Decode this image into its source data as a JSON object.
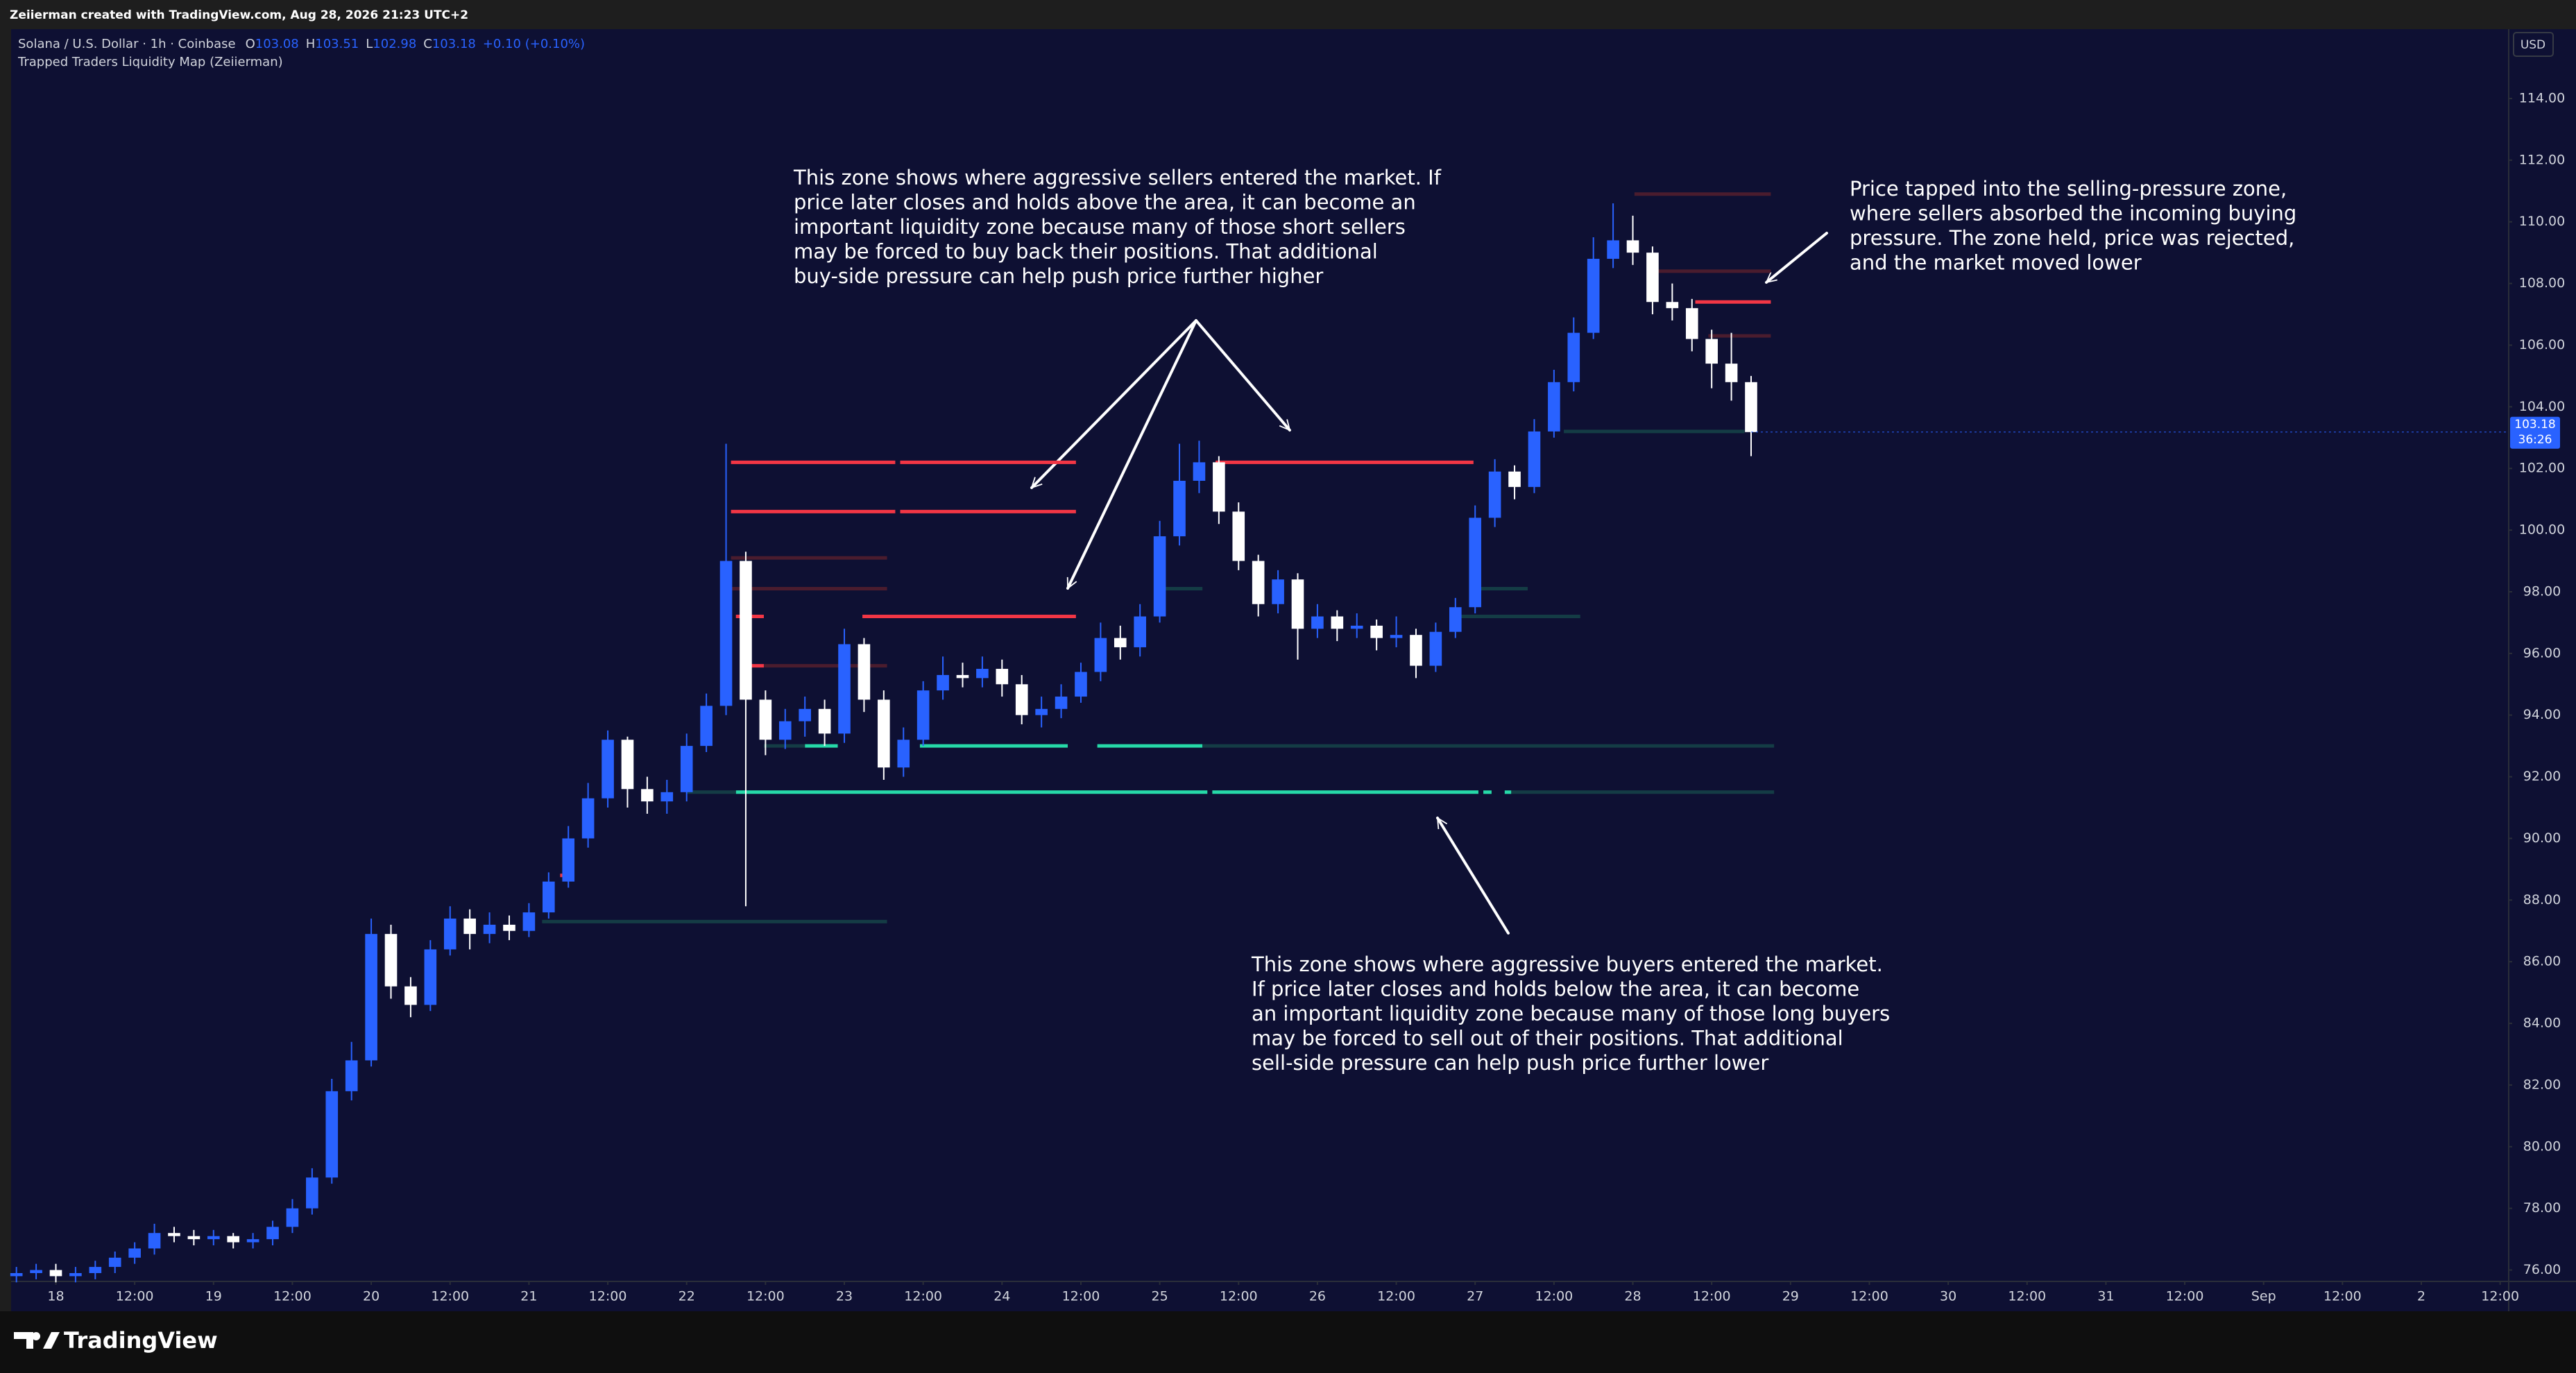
{
  "header": {
    "credit": "Zeiierman created with TradingView.com, Aug 28, 2026 21:23 UTC+2"
  },
  "chart_data": {
    "type": "candlestick",
    "symbol": "Solana / U.S. Dollar · 1h · Coinbase",
    "ohlc_legend": [
      {
        "label": "O",
        "value": 103.08
      },
      {
        "label": "H",
        "value": 103.51
      },
      {
        "label": "L",
        "value": 102.98
      },
      {
        "label": "C",
        "value": 103.18
      }
    ],
    "change": "+0.10 (+0.10%)",
    "indicator": "Trapped Traders Liquidity Map (Zeiierman)",
    "currency": "USD",
    "countdown": "36:26",
    "x": [
      -6,
      -3,
      0,
      3,
      6,
      9,
      12,
      15,
      18,
      21,
      24,
      27,
      30,
      33,
      36,
      39,
      42,
      45,
      48,
      51,
      54,
      57,
      60,
      63,
      66,
      69,
      72,
      75,
      78,
      81,
      84,
      87,
      90,
      93,
      96,
      99,
      102,
      105,
      108,
      111,
      114,
      117,
      120,
      123,
      126,
      129,
      132,
      135,
      138,
      141,
      144,
      147,
      150,
      153,
      156,
      159,
      162,
      165,
      168,
      171,
      174,
      177,
      180,
      183,
      186,
      189,
      192,
      195,
      198,
      201,
      204,
      207,
      210,
      213,
      216,
      219,
      222,
      225,
      228,
      231,
      234,
      237,
      240,
      243,
      246,
      249,
      252,
      255,
      258
    ],
    "open": [
      75.8,
      75.9,
      76.0,
      75.8,
      75.9,
      76.1,
      76.4,
      76.7,
      77.2,
      77.1,
      77.0,
      77.1,
      76.9,
      77.0,
      77.4,
      78.0,
      79.0,
      81.8,
      82.8,
      86.9,
      85.2,
      84.6,
      86.4,
      87.4,
      86.9,
      87.2,
      87.0,
      87.6,
      88.6,
      90.0,
      91.3,
      93.2,
      91.6,
      91.2,
      91.5,
      93.0,
      94.3,
      99.0,
      94.5,
      93.2,
      93.8,
      94.2,
      93.4,
      96.3,
      94.5,
      92.3,
      93.2,
      94.8,
      95.3,
      95.2,
      95.5,
      95.0,
      94.0,
      94.2,
      94.6,
      95.4,
      96.5,
      96.2,
      97.2,
      99.8,
      101.6,
      102.2,
      100.6,
      99.0,
      97.6,
      98.4,
      96.8,
      97.2,
      96.8,
      96.9,
      96.5,
      96.6,
      95.6,
      96.7,
      97.5,
      100.4,
      101.9,
      101.4,
      103.2,
      104.8,
      106.4,
      108.8,
      109.4,
      109.0,
      107.4,
      107.2,
      106.2,
      105.4,
      104.8
    ],
    "high": [
      76.1,
      76.2,
      76.2,
      76.1,
      76.3,
      76.6,
      76.9,
      77.5,
      77.4,
      77.3,
      77.3,
      77.2,
      77.2,
      77.6,
      78.3,
      79.3,
      82.2,
      83.4,
      87.4,
      87.2,
      85.5,
      86.7,
      87.8,
      87.7,
      87.6,
      87.5,
      87.9,
      88.9,
      90.4,
      91.8,
      93.5,
      93.3,
      92.0,
      91.9,
      93.4,
      94.7,
      102.8,
      99.3,
      94.8,
      94.2,
      94.6,
      94.5,
      96.8,
      96.5,
      94.8,
      93.6,
      95.1,
      95.9,
      95.7,
      95.9,
      95.8,
      95.3,
      94.6,
      95.0,
      95.7,
      97.0,
      96.9,
      97.6,
      100.3,
      102.8,
      102.9,
      102.4,
      100.9,
      99.2,
      98.7,
      98.6,
      97.6,
      97.4,
      97.3,
      97.1,
      97.2,
      96.8,
      97.0,
      97.8,
      100.8,
      102.3,
      102.1,
      103.6,
      105.2,
      106.9,
      109.5,
      110.6,
      110.2,
      109.2,
      108.0,
      107.5,
      106.5,
      106.4,
      105.0
    ],
    "low": [
      75.6,
      75.7,
      75.6,
      75.6,
      75.7,
      75.9,
      76.2,
      76.5,
      76.9,
      76.8,
      76.8,
      76.7,
      76.7,
      76.8,
      77.2,
      77.8,
      78.8,
      81.5,
      82.6,
      84.8,
      84.2,
      84.4,
      86.2,
      86.4,
      86.6,
      86.7,
      86.8,
      87.4,
      88.4,
      89.7,
      91.0,
      91.0,
      90.8,
      90.8,
      91.2,
      92.8,
      94.0,
      87.8,
      92.7,
      92.9,
      93.3,
      93.0,
      93.1,
      94.1,
      91.9,
      92.0,
      93.0,
      94.5,
      94.9,
      94.9,
      94.6,
      93.7,
      93.6,
      93.9,
      94.4,
      95.1,
      95.8,
      95.9,
      97.0,
      99.5,
      101.2,
      100.2,
      98.7,
      97.2,
      97.3,
      95.8,
      96.5,
      96.4,
      96.5,
      96.1,
      96.2,
      95.2,
      95.4,
      96.5,
      97.3,
      100.1,
      101.0,
      101.2,
      103.0,
      104.5,
      106.2,
      108.5,
      108.6,
      107.0,
      106.8,
      105.8,
      104.6,
      104.2,
      102.4
    ],
    "close": [
      75.9,
      76.0,
      75.8,
      75.9,
      76.1,
      76.4,
      76.7,
      77.2,
      77.1,
      77.0,
      77.1,
      76.9,
      77.0,
      77.4,
      78.0,
      79.0,
      81.8,
      82.8,
      86.9,
      85.2,
      84.6,
      86.4,
      87.4,
      86.9,
      87.2,
      87.0,
      87.6,
      88.6,
      90.0,
      91.3,
      93.2,
      91.6,
      91.2,
      91.5,
      93.0,
      94.3,
      99.0,
      94.5,
      93.2,
      93.8,
      94.2,
      93.4,
      96.3,
      94.5,
      92.3,
      93.2,
      94.8,
      95.3,
      95.2,
      95.5,
      95.0,
      94.0,
      94.2,
      94.6,
      95.4,
      96.5,
      96.2,
      97.2,
      99.8,
      101.6,
      102.2,
      100.6,
      99.0,
      97.6,
      98.4,
      96.8,
      97.2,
      96.8,
      96.9,
      96.5,
      96.6,
      95.6,
      96.7,
      97.5,
      100.4,
      101.9,
      101.4,
      103.2,
      104.8,
      106.4,
      108.8,
      109.4,
      109.0,
      107.4,
      107.2,
      106.2,
      105.4,
      104.8,
      103.18
    ],
    "up_color": "#2962ff",
    "down_color": "#ffffff",
    "zones": [
      {
        "price": 102.2,
        "from": 102.75,
        "to": 127.75,
        "color": "#f23645"
      },
      {
        "price": 102.2,
        "from": 128.5,
        "to": 155.25,
        "color": "#f23645"
      },
      {
        "price": 102.2,
        "from": 176.5,
        "to": 215.75,
        "color": "#f23645"
      },
      {
        "price": 100.6,
        "from": 102.75,
        "to": 127.75,
        "color": "#f23645"
      },
      {
        "price": 100.6,
        "from": 128.5,
        "to": 155.25,
        "color": "#f23645"
      },
      {
        "price": 97.2,
        "from": 103.5,
        "to": 107.75,
        "color": "#f23645"
      },
      {
        "price": 97.2,
        "from": 122.75,
        "to": 155.25,
        "color": "#f23645"
      },
      {
        "price": 95.6,
        "from": 105.75,
        "to": 107.75,
        "color": "#f23645"
      },
      {
        "price": 88.8,
        "from": 76.75,
        "to": 78.5,
        "color": "#f23645"
      },
      {
        "price": 107.4,
        "from": 249.5,
        "to": 261,
        "color": "#f23645"
      },
      {
        "price": 99.1,
        "from": 102.75,
        "to": 126.5,
        "color": "#4a1c2e"
      },
      {
        "price": 98.1,
        "from": 102.75,
        "to": 126.5,
        "color": "#4a1c2e"
      },
      {
        "price": 95.6,
        "from": 107.75,
        "to": 126.5,
        "color": "#4a1c2e"
      },
      {
        "price": 110.9,
        "from": 240.25,
        "to": 261,
        "color": "#4a1c2e"
      },
      {
        "price": 108.4,
        "from": 243.5,
        "to": 261,
        "color": "#4a1c2e"
      },
      {
        "price": 106.3,
        "from": 251.5,
        "to": 261,
        "color": "#4a1c2e"
      },
      {
        "price": 93.0,
        "from": 114,
        "to": 119,
        "color": "#26d9a8"
      },
      {
        "price": 93.0,
        "from": 131.5,
        "to": 154,
        "color": "#26d9a8"
      },
      {
        "price": 93.0,
        "from": 158.5,
        "to": 174.5,
        "color": "#26d9a8"
      },
      {
        "price": 91.5,
        "from": 103.5,
        "to": 175.25,
        "color": "#26d9a8"
      },
      {
        "price": 91.5,
        "from": 176,
        "to": 216.5,
        "color": "#26d9a8"
      },
      {
        "price": 91.5,
        "from": 217.25,
        "to": 218.5,
        "color": "#26d9a8"
      },
      {
        "price": 91.5,
        "from": 220.5,
        "to": 221.5,
        "color": "#26d9a8"
      },
      {
        "price": 91.5,
        "from": 96,
        "to": 103.5,
        "color": "#143c45"
      },
      {
        "price": 91.5,
        "from": 221.5,
        "to": 261.5,
        "color": "#143c45"
      },
      {
        "price": 93.0,
        "from": 107.75,
        "to": 114,
        "color": "#143c45"
      },
      {
        "price": 93.0,
        "from": 174.5,
        "to": 261.5,
        "color": "#143c45"
      },
      {
        "price": 87.3,
        "from": 74,
        "to": 126.5,
        "color": "#143c45"
      },
      {
        "price": 98.1,
        "from": 168.5,
        "to": 174.5,
        "color": "#143c45"
      },
      {
        "price": 98.1,
        "from": 215.25,
        "to": 224,
        "color": "#143c45"
      },
      {
        "price": 97.2,
        "from": 212.75,
        "to": 232,
        "color": "#143c45"
      },
      {
        "price": 103.2,
        "from": 229.5,
        "to": 257,
        "color": "#143c45"
      }
    ],
    "xlim": [
      -6.81,
      373.3
    ],
    "ylim": [
      75.63,
      116.25
    ],
    "xticks": [
      {
        "value": 0,
        "label": "18"
      },
      {
        "value": 12,
        "label": "12:00"
      },
      {
        "value": 24,
        "label": "19"
      },
      {
        "value": 36,
        "label": "12:00"
      },
      {
        "value": 48,
        "label": "20"
      },
      {
        "value": 60,
        "label": "12:00"
      },
      {
        "value": 72,
        "label": "21"
      },
      {
        "value": 84,
        "label": "12:00"
      },
      {
        "value": 96,
        "label": "22"
      },
      {
        "value": 108,
        "label": "12:00"
      },
      {
        "value": 120,
        "label": "23"
      },
      {
        "value": 132,
        "label": "12:00"
      },
      {
        "value": 144,
        "label": "24"
      },
      {
        "value": 156,
        "label": "12:00"
      },
      {
        "value": 168,
        "label": "25"
      },
      {
        "value": 180,
        "label": "12:00"
      },
      {
        "value": 192,
        "label": "26"
      },
      {
        "value": 204,
        "label": "12:00"
      },
      {
        "value": 216,
        "label": "27"
      },
      {
        "value": 228,
        "label": "12:00"
      },
      {
        "value": 240,
        "label": "28"
      },
      {
        "value": 252,
        "label": "12:00"
      },
      {
        "value": 264,
        "label": "29"
      },
      {
        "value": 276,
        "label": "12:00"
      },
      {
        "value": 288,
        "label": "30"
      },
      {
        "value": 300,
        "label": "12:00"
      },
      {
        "value": 312,
        "label": "31"
      },
      {
        "value": 324,
        "label": "12:00"
      },
      {
        "value": 336,
        "label": "Sep"
      },
      {
        "value": 348,
        "label": "12:00"
      },
      {
        "value": 360,
        "label": "2"
      },
      {
        "value": 372,
        "label": "12:00"
      }
    ],
    "yticks": [
      {
        "value": 76,
        "label": "76.00"
      },
      {
        "value": 78,
        "label": "78.00"
      },
      {
        "value": 80,
        "label": "80.00"
      },
      {
        "value": 82,
        "label": "82.00"
      },
      {
        "value": 84,
        "label": "84.00"
      },
      {
        "value": 86,
        "label": "86.00"
      },
      {
        "value": 88,
        "label": "88.00"
      },
      {
        "value": 90,
        "label": "90.00"
      },
      {
        "value": 92,
        "label": "92.00"
      },
      {
        "value": 94,
        "label": "94.00"
      },
      {
        "value": 96,
        "label": "96.00"
      },
      {
        "value": 98,
        "label": "98.00"
      },
      {
        "value": 100,
        "label": "100.00"
      },
      {
        "value": 102,
        "label": "102.00"
      },
      {
        "value": 104,
        "label": "104.00"
      },
      {
        "value": 106,
        "label": "106.00"
      },
      {
        "value": 108,
        "label": "108.00"
      },
      {
        "value": 110,
        "label": "110.00"
      },
      {
        "value": 112,
        "label": "112.00"
      },
      {
        "value": 114,
        "label": "114.00"
      }
    ],
    "grid": false,
    "annotations": [
      {
        "lines": [
          "This zone shows where aggressive sellers entered the market. If",
          "price later closes and holds above the area, it can become an",
          "important liquidity zone because many of those short sellers",
          "may be forced to buy back their positions. That additional",
          "buy-side pressure can help push price further higher"
        ]
      },
      {
        "lines": [
          "Price tapped into the selling-pressure zone,",
          "where sellers absorbed the incoming buying",
          "pressure. The zone held, price was rejected,",
          "and the market moved lower"
        ]
      },
      {
        "lines": [
          "This zone shows where aggressive buyers entered the market.",
          "If price later closes and holds below the area, it can become",
          "an important liquidity zone because many of those long buyers",
          "may be forced to sell out of their positions. That additional",
          "sell-side pressure can help push price further lower"
        ]
      }
    ]
  },
  "footer": {
    "brand": "TradingView"
  }
}
